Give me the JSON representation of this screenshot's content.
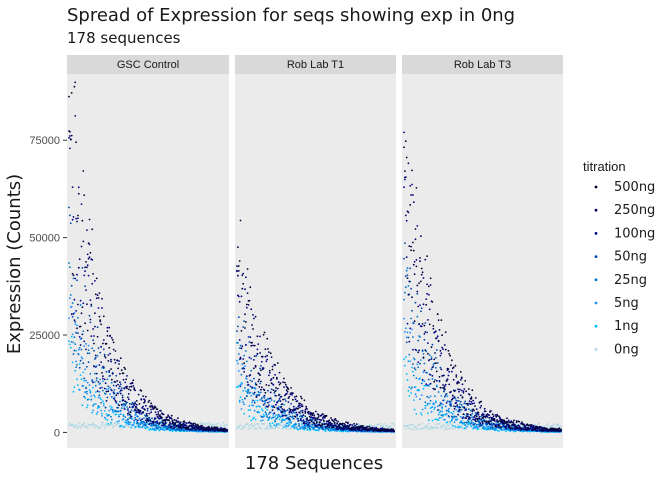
{
  "chart_data": {
    "type": "scatter",
    "title": "Spread of Expression for seqs showing exp in 0ng",
    "subtitle": "178 sequences",
    "xlabel": "178 Sequences",
    "ylabel": "Expression (Counts)",
    "ylim": [
      -4000,
      92000
    ],
    "yticks": [
      0,
      25000,
      50000,
      75000
    ],
    "ytick_labels": [
      "0",
      "25000",
      "50000",
      "75000"
    ],
    "grid": false,
    "n_sequences": 178,
    "legend": {
      "title": "titration",
      "placement": "right",
      "entries": [
        {
          "label": "500ng",
          "color": "#000033"
        },
        {
          "label": "250ng",
          "color": "#000066"
        },
        {
          "label": "100ng",
          "color": "#00008B"
        },
        {
          "label": "50ng",
          "color": "#0047AB"
        },
        {
          "label": "25ng",
          "color": "#0077C8"
        },
        {
          "label": "5ng",
          "color": "#1E90FF"
        },
        {
          "label": "1ng",
          "color": "#00BFFF"
        },
        {
          "label": "0ng",
          "color": "#ADD8E6"
        }
      ]
    },
    "panels": [
      {
        "label": "GSC Control",
        "peak": 87000,
        "decay": 0.03,
        "floor": 1000
      },
      {
        "label": "Rob Lab T1",
        "peak": 46000,
        "decay": 0.028,
        "floor": 800
      },
      {
        "label": "Rob Lab T3",
        "peak": 78000,
        "decay": 0.03,
        "floor": 800
      }
    ]
  }
}
